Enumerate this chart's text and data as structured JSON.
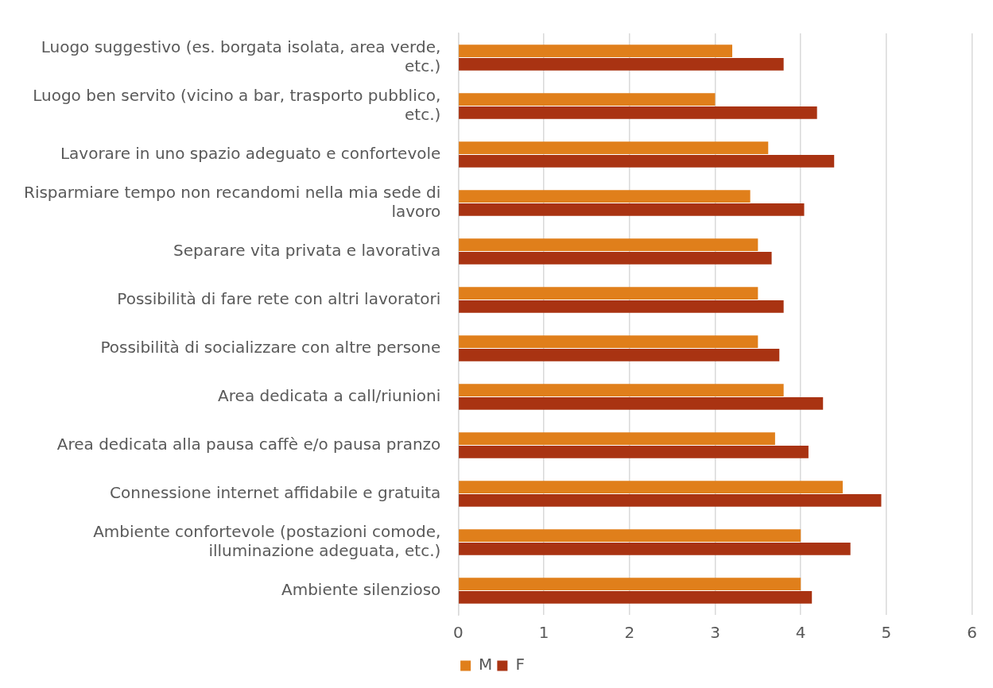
{
  "chart_data": {
    "type": "bar",
    "orientation": "horizontal",
    "categories": [
      "Luogo suggestivo (es. borgata isolata, area verde, etc.)",
      "Luogo ben servito (vicino a bar, trasporto pubblico, etc.)",
      "Lavorare in uno spazio adeguato e confortevole",
      "Risparmiare tempo non recandomi nella mia sede di lavoro",
      "Separare vita privata e lavorativa",
      "Possibilità di fare rete con altri lavoratori",
      "Possibilità di socializzare con altre persone",
      "Area dedicata a call/riunioni",
      "Area dedicata alla pausa caffè e/o pausa pranzo",
      "Connessione internet affidabile e gratuita",
      "Ambiente confortevole (postazioni comode, illuminazione adeguata, etc.)",
      "Ambiente silenzioso"
    ],
    "series": [
      {
        "name": "M",
        "color": "#e07f1b",
        "values": [
          3.2,
          3.0,
          3.62,
          3.41,
          3.5,
          3.5,
          3.5,
          3.8,
          3.7,
          4.49,
          4.0,
          4.0
        ]
      },
      {
        "name": "F",
        "color": "#a93312",
        "values": [
          3.8,
          4.19,
          4.39,
          4.04,
          3.66,
          3.8,
          3.75,
          4.26,
          4.09,
          4.94,
          4.58,
          4.13
        ]
      }
    ],
    "xlim": [
      0,
      6
    ],
    "xticks": [
      0,
      1,
      2,
      3,
      4,
      5,
      6
    ],
    "grid": "x",
    "legend": "bottom"
  }
}
